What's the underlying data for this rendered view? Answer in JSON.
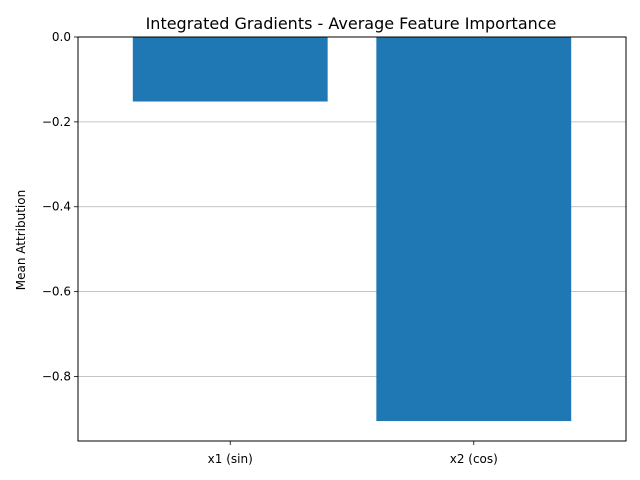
{
  "chart_data": {
    "type": "bar",
    "title": "Integrated Gradients - Average Feature Importance",
    "xlabel": "",
    "ylabel": "Mean Attribution",
    "categories": [
      "x1 (sin)",
      "x2 (cos)"
    ],
    "values": [
      -0.152,
      -0.905
    ],
    "ylim": [
      -0.952,
      0.0
    ],
    "yticks": [
      0.0,
      -0.2,
      -0.4,
      -0.6,
      -0.8
    ],
    "ytick_labels": [
      "0.0",
      "−0.2",
      "−0.4",
      "−0.6",
      "−0.8"
    ],
    "grid": "y",
    "bar_color": "#1f77b4",
    "grid_color": "#b0b0b0"
  }
}
